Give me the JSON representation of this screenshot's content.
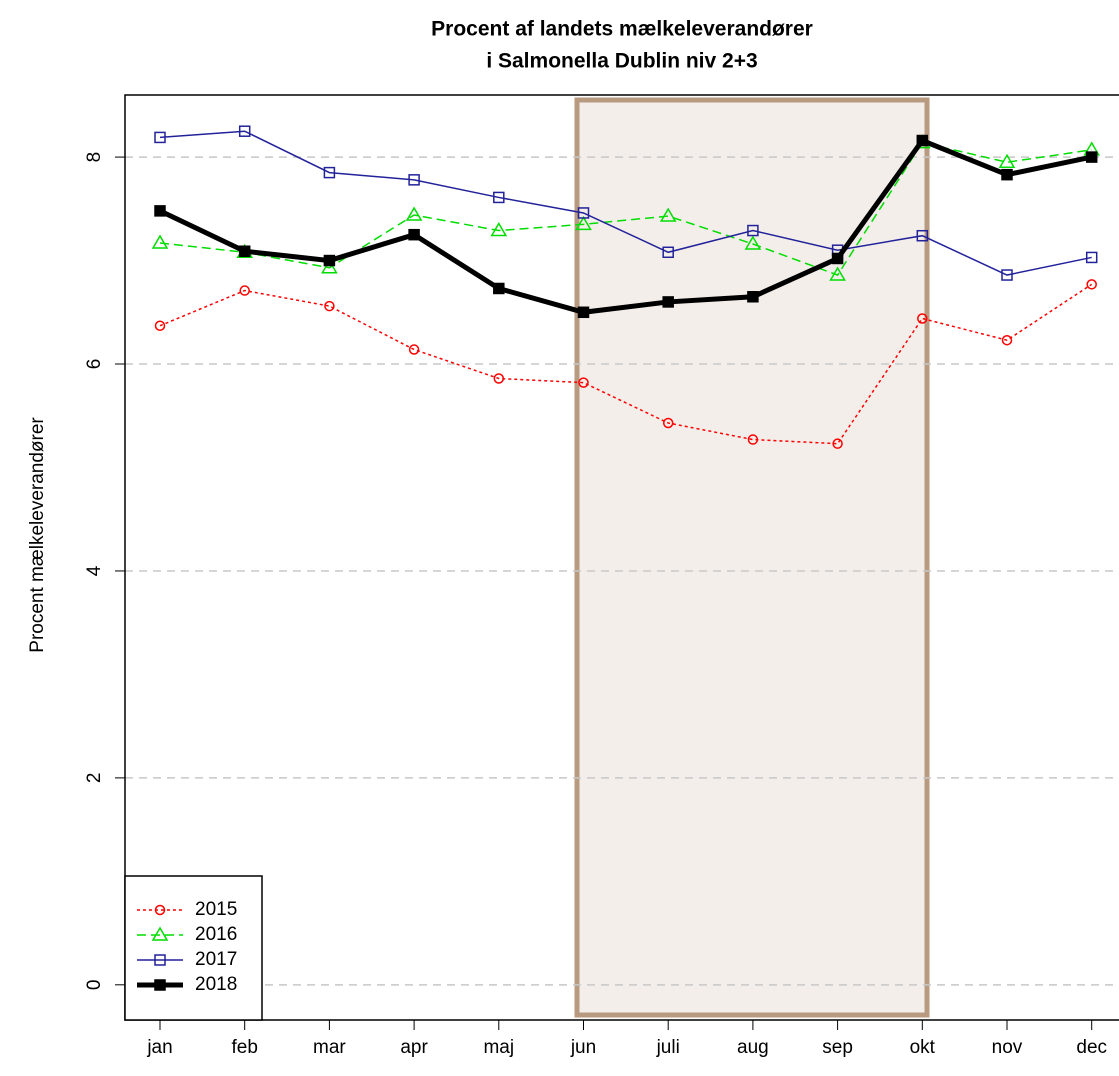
{
  "chart_data": {
    "type": "line",
    "title": "Procent af landets mælkeleverandører",
    "subtitle": "i Salmonella Dublin niv 2+3",
    "y_label": "Procent mælkeleverandører",
    "categories": [
      "jan",
      "feb",
      "mar",
      "apr",
      "maj",
      "jun",
      "juli",
      "aug",
      "sep",
      "okt",
      "nov",
      "dec"
    ],
    "series": [
      {
        "name": "2015",
        "color": "#ff0000",
        "marker": "circle",
        "linestyle": "dotted",
        "values": [
          6.37,
          6.71,
          6.56,
          6.14,
          5.86,
          5.82,
          5.43,
          5.27,
          5.23,
          6.44,
          6.23,
          6.77
        ]
      },
      {
        "name": "2016",
        "color": "#00dd00",
        "marker": "triangle",
        "linestyle": "dashed",
        "values": [
          7.17,
          7.08,
          6.93,
          7.44,
          7.29,
          7.35,
          7.43,
          7.16,
          6.86,
          8.14,
          7.95,
          8.07
        ]
      },
      {
        "name": "2017",
        "color": "#22229a",
        "marker": "square",
        "linestyle": "solid",
        "values": [
          8.19,
          8.25,
          7.85,
          7.78,
          7.61,
          7.46,
          7.08,
          7.29,
          7.1,
          7.24,
          6.86,
          7.03
        ]
      },
      {
        "name": "2018",
        "color": "#000000",
        "marker": "filled-square",
        "linestyle": "thick",
        "values": [
          7.48,
          7.09,
          7.0,
          7.25,
          6.73,
          6.5,
          6.6,
          6.65,
          7.02,
          8.16,
          7.83,
          8.0
        ]
      }
    ],
    "ylim": [
      -0.34,
      8.6
    ],
    "yticks": [
      0,
      2,
      4,
      6,
      8
    ],
    "grid": true,
    "legend": "bottom-left"
  }
}
